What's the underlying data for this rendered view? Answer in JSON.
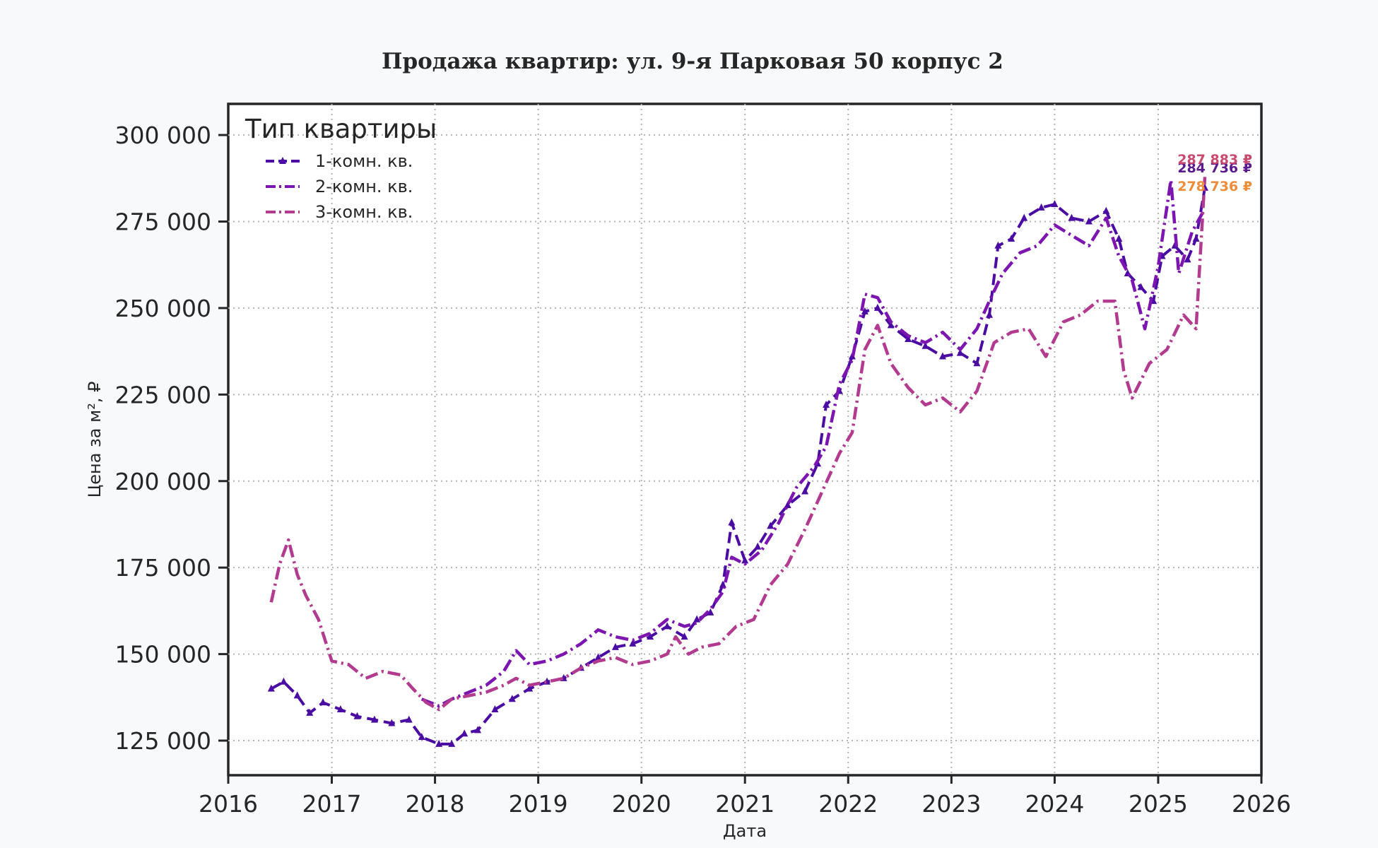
{
  "chart_data": {
    "type": "line",
    "title": "Продажа квартир: ул. 9-я Парковая 50 корпус 2",
    "xlabel": "Дата",
    "ylabel": "Цена за м², ₽",
    "xlim": [
      "2016-01-01",
      "2026-01-01"
    ],
    "ylim": [
      115000,
      309000
    ],
    "x_ticks": [
      "2016",
      "2017",
      "2018",
      "2019",
      "2020",
      "2021",
      "2022",
      "2023",
      "2024",
      "2025",
      "2026"
    ],
    "y_ticks": [
      125000,
      150000,
      175000,
      200000,
      225000,
      250000,
      275000,
      300000
    ],
    "y_tick_labels": [
      "125 000",
      "150 000",
      "175 000",
      "200 000",
      "225 000",
      "250 000",
      "275 000",
      "300 000"
    ],
    "grid": true,
    "legend": {
      "title": "Тип квартиры",
      "placement": "top-left"
    },
    "series": [
      {
        "name": "1-комн. кв.",
        "color": "#4b0ca3",
        "style": "dashed with triangle markers",
        "end_label": "284 736 ₽",
        "points": [
          [
            "2016-06-01",
            140000
          ],
          [
            "2016-07-15",
            142000
          ],
          [
            "2016-09-01",
            138000
          ],
          [
            "2016-10-15",
            133000
          ],
          [
            "2016-12-01",
            136000
          ],
          [
            "2017-02-01",
            134000
          ],
          [
            "2017-04-01",
            132000
          ],
          [
            "2017-06-01",
            131000
          ],
          [
            "2017-08-01",
            130000
          ],
          [
            "2017-10-01",
            131000
          ],
          [
            "2017-11-15",
            126000
          ],
          [
            "2018-01-15",
            124000
          ],
          [
            "2018-03-01",
            124000
          ],
          [
            "2018-04-15",
            127000
          ],
          [
            "2018-06-01",
            128000
          ],
          [
            "2018-08-01",
            134000
          ],
          [
            "2018-10-01",
            137000
          ],
          [
            "2018-12-01",
            140000
          ],
          [
            "2019-02-01",
            142000
          ],
          [
            "2019-04-01",
            143000
          ],
          [
            "2019-06-01",
            146000
          ],
          [
            "2019-08-01",
            149000
          ],
          [
            "2019-10-01",
            152000
          ],
          [
            "2019-12-01",
            153000
          ],
          [
            "2020-02-01",
            155000
          ],
          [
            "2020-04-01",
            158000
          ],
          [
            "2020-06-01",
            155000
          ],
          [
            "2020-07-15",
            160000
          ],
          [
            "2020-09-01",
            162000
          ],
          [
            "2020-10-15",
            170000
          ],
          [
            "2020-11-15",
            188000
          ],
          [
            "2021-01-01",
            177000
          ],
          [
            "2021-02-15",
            181000
          ],
          [
            "2021-04-01",
            187000
          ],
          [
            "2021-06-01",
            193000
          ],
          [
            "2021-08-01",
            197000
          ],
          [
            "2021-09-15",
            205000
          ],
          [
            "2021-10-15",
            222000
          ],
          [
            "2021-12-01",
            226000
          ],
          [
            "2022-01-15",
            236000
          ],
          [
            "2022-03-01",
            249000
          ],
          [
            "2022-04-15",
            250000
          ],
          [
            "2022-06-01",
            245000
          ],
          [
            "2022-08-01",
            241000
          ],
          [
            "2022-10-01",
            239000
          ],
          [
            "2022-12-01",
            236000
          ],
          [
            "2023-02-01",
            237000
          ],
          [
            "2023-04-01",
            234000
          ],
          [
            "2023-05-15",
            248000
          ],
          [
            "2023-06-15",
            268000
          ],
          [
            "2023-08-01",
            270000
          ],
          [
            "2023-09-15",
            276000
          ],
          [
            "2023-11-15",
            279000
          ],
          [
            "2024-01-01",
            280000
          ],
          [
            "2024-03-01",
            276000
          ],
          [
            "2024-05-01",
            275000
          ],
          [
            "2024-07-01",
            278000
          ],
          [
            "2024-08-15",
            270000
          ],
          [
            "2024-09-15",
            260000
          ],
          [
            "2024-11-01",
            256000
          ],
          [
            "2024-12-15",
            252000
          ],
          [
            "2025-01-15",
            265000
          ],
          [
            "2025-03-01",
            268000
          ],
          [
            "2025-04-15",
            264000
          ],
          [
            "2025-05-15",
            270000
          ],
          [
            "2025-06-15",
            284736
          ]
        ]
      },
      {
        "name": "2-комн. кв.",
        "color": "#7d15b0",
        "style": "dash-dot",
        "end_label": "278 736 ₽",
        "points": [
          [
            "2017-11-15",
            137000
          ],
          [
            "2018-01-15",
            135000
          ],
          [
            "2018-03-01",
            137000
          ],
          [
            "2018-05-01",
            139000
          ],
          [
            "2018-07-01",
            141000
          ],
          [
            "2018-09-01",
            145000
          ],
          [
            "2018-10-15",
            151000
          ],
          [
            "2018-12-01",
            147000
          ],
          [
            "2019-02-01",
            148000
          ],
          [
            "2019-04-01",
            150000
          ],
          [
            "2019-06-01",
            153000
          ],
          [
            "2019-08-01",
            157000
          ],
          [
            "2019-10-01",
            155000
          ],
          [
            "2019-12-01",
            154000
          ],
          [
            "2020-02-01",
            156000
          ],
          [
            "2020-04-01",
            160000
          ],
          [
            "2020-06-01",
            158000
          ],
          [
            "2020-07-15",
            159000
          ],
          [
            "2020-09-01",
            163000
          ],
          [
            "2020-10-15",
            168000
          ],
          [
            "2020-11-15",
            178000
          ],
          [
            "2021-01-01",
            176000
          ],
          [
            "2021-03-01",
            180000
          ],
          [
            "2021-05-01",
            188000
          ],
          [
            "2021-07-01",
            198000
          ],
          [
            "2021-09-01",
            204000
          ],
          [
            "2021-10-15",
            210000
          ],
          [
            "2021-12-01",
            228000
          ],
          [
            "2022-01-15",
            235000
          ],
          [
            "2022-03-01",
            254000
          ],
          [
            "2022-04-15",
            253000
          ],
          [
            "2022-06-01",
            246000
          ],
          [
            "2022-08-01",
            242000
          ],
          [
            "2022-10-01",
            240000
          ],
          [
            "2022-12-01",
            243000
          ],
          [
            "2023-02-01",
            238000
          ],
          [
            "2023-04-01",
            244000
          ],
          [
            "2023-05-15",
            252000
          ],
          [
            "2023-07-01",
            260000
          ],
          [
            "2023-09-01",
            266000
          ],
          [
            "2023-11-01",
            268000
          ],
          [
            "2024-01-01",
            274000
          ],
          [
            "2024-03-01",
            271000
          ],
          [
            "2024-05-01",
            268000
          ],
          [
            "2024-07-01",
            276000
          ],
          [
            "2024-08-15",
            265000
          ],
          [
            "2024-10-01",
            258000
          ],
          [
            "2024-11-15",
            244000
          ],
          [
            "2025-01-01",
            262000
          ],
          [
            "2025-02-15",
            287000
          ],
          [
            "2025-03-15",
            260000
          ],
          [
            "2025-05-01",
            272000
          ],
          [
            "2025-06-15",
            278736
          ]
        ]
      },
      {
        "name": "3-комн. кв.",
        "color": "#b23a8f",
        "style": "dash-dot",
        "end_label": "287 883 ₽",
        "points": [
          [
            "2016-06-01",
            165000
          ],
          [
            "2016-07-01",
            176000
          ],
          [
            "2016-08-01",
            183000
          ],
          [
            "2016-09-01",
            173000
          ],
          [
            "2016-10-01",
            167000
          ],
          [
            "2016-11-15",
            160000
          ],
          [
            "2017-01-01",
            148000
          ],
          [
            "2017-03-01",
            147000
          ],
          [
            "2017-05-01",
            143000
          ],
          [
            "2017-07-01",
            145000
          ],
          [
            "2017-09-01",
            144000
          ],
          [
            "2017-10-15",
            140000
          ],
          [
            "2017-12-01",
            136000
          ],
          [
            "2018-01-15",
            134000
          ],
          [
            "2018-03-01",
            137000
          ],
          [
            "2018-05-01",
            138000
          ],
          [
            "2018-07-01",
            139000
          ],
          [
            "2018-09-01",
            141000
          ],
          [
            "2018-10-15",
            143000
          ],
          [
            "2018-12-01",
            141000
          ],
          [
            "2019-02-01",
            142000
          ],
          [
            "2019-04-01",
            143000
          ],
          [
            "2019-06-01",
            146000
          ],
          [
            "2019-08-01",
            148000
          ],
          [
            "2019-10-01",
            149000
          ],
          [
            "2019-12-01",
            147000
          ],
          [
            "2020-02-01",
            148000
          ],
          [
            "2020-04-01",
            150000
          ],
          [
            "2020-05-01",
            155000
          ],
          [
            "2020-06-15",
            150000
          ],
          [
            "2020-08-01",
            152000
          ],
          [
            "2020-10-01",
            153000
          ],
          [
            "2020-12-01",
            158000
          ],
          [
            "2021-02-01",
            160000
          ],
          [
            "2021-04-01",
            170000
          ],
          [
            "2021-06-01",
            176000
          ],
          [
            "2021-08-01",
            186000
          ],
          [
            "2021-10-01",
            197000
          ],
          [
            "2021-12-01",
            208000
          ],
          [
            "2022-01-15",
            214000
          ],
          [
            "2022-03-01",
            238000
          ],
          [
            "2022-04-15",
            245000
          ],
          [
            "2022-06-01",
            234000
          ],
          [
            "2022-08-01",
            227000
          ],
          [
            "2022-10-01",
            222000
          ],
          [
            "2022-12-01",
            224000
          ],
          [
            "2023-02-01",
            220000
          ],
          [
            "2023-04-01",
            226000
          ],
          [
            "2023-06-01",
            240000
          ],
          [
            "2023-08-01",
            243000
          ],
          [
            "2023-10-01",
            244000
          ],
          [
            "2023-12-01",
            236000
          ],
          [
            "2024-02-01",
            246000
          ],
          [
            "2024-04-01",
            248000
          ],
          [
            "2024-06-01",
            252000
          ],
          [
            "2024-08-01",
            252000
          ],
          [
            "2024-09-01",
            232000
          ],
          [
            "2024-10-01",
            224000
          ],
          [
            "2024-12-01",
            234000
          ],
          [
            "2025-02-01",
            238000
          ],
          [
            "2025-04-01",
            248000
          ],
          [
            "2025-05-15",
            244000
          ],
          [
            "2025-06-15",
            287883
          ]
        ]
      }
    ]
  }
}
